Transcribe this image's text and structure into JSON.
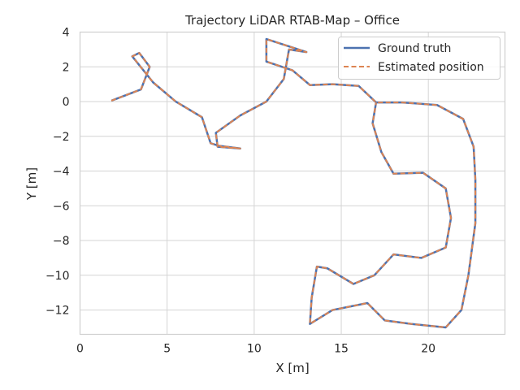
{
  "chart_data": {
    "type": "line",
    "title": "Trajectory LiDAR RTAB-Map – Office",
    "xlabel": "X [m]",
    "ylabel": "Y [m]",
    "xlim": [
      0,
      24.4
    ],
    "ylim": [
      -13.4,
      4
    ],
    "xticks": [
      0,
      5,
      10,
      15,
      20
    ],
    "yticks": [
      4,
      2,
      0,
      -2,
      -4,
      -6,
      -8,
      -10,
      -12
    ],
    "grid": true,
    "legend_position": "top-right",
    "series": [
      {
        "name": "Ground truth",
        "color": "#4C72B0",
        "style": "solid",
        "points": [
          [
            1.8,
            0.05
          ],
          [
            3.5,
            0.7
          ],
          [
            4.0,
            2.0
          ],
          [
            3.4,
            2.8
          ],
          [
            3.0,
            2.6
          ],
          [
            4.2,
            1.1
          ],
          [
            5.5,
            0.0
          ],
          [
            7.0,
            -0.9
          ],
          [
            7.5,
            -2.4
          ],
          [
            8.0,
            -2.55
          ],
          [
            9.2,
            -2.7
          ],
          [
            7.9,
            -2.6
          ],
          [
            7.8,
            -1.8
          ],
          [
            9.2,
            -0.8
          ],
          [
            10.7,
            0.0
          ],
          [
            11.7,
            1.3
          ],
          [
            12.0,
            3.0
          ],
          [
            13.0,
            2.85
          ],
          [
            10.7,
            3.6
          ],
          [
            10.7,
            2.3
          ],
          [
            12.2,
            1.8
          ],
          [
            13.2,
            0.95
          ],
          [
            14.5,
            1.0
          ],
          [
            16.0,
            0.9
          ],
          [
            17.0,
            -0.05
          ],
          [
            18.5,
            -0.05
          ],
          [
            20.5,
            -0.2
          ],
          [
            22.0,
            -1.0
          ],
          [
            22.6,
            -2.6
          ],
          [
            22.7,
            -4.5
          ],
          [
            22.7,
            -7.0
          ],
          [
            22.5,
            -8.5
          ],
          [
            22.3,
            -10.0
          ],
          [
            21.9,
            -12.0
          ],
          [
            21.0,
            -13.0
          ],
          [
            19.0,
            -12.8
          ],
          [
            17.5,
            -12.6
          ],
          [
            16.5,
            -11.6
          ],
          [
            14.5,
            -12.0
          ],
          [
            13.2,
            -12.8
          ],
          [
            13.3,
            -11.3
          ],
          [
            13.6,
            -9.5
          ],
          [
            14.2,
            -9.6
          ],
          [
            15.7,
            -10.5
          ],
          [
            16.9,
            -10.0
          ],
          [
            18.0,
            -8.8
          ],
          [
            19.6,
            -9.0
          ],
          [
            21.0,
            -8.4
          ],
          [
            21.3,
            -6.7
          ],
          [
            21.0,
            -5.0
          ],
          [
            19.7,
            -4.1
          ],
          [
            18.0,
            -4.15
          ],
          [
            17.3,
            -2.9
          ],
          [
            16.8,
            -1.25
          ],
          [
            17.0,
            -0.05
          ]
        ]
      },
      {
        "name": "Estimated position",
        "color": "#DD8452",
        "style": "dashed",
        "points": [
          [
            1.8,
            0.05
          ],
          [
            3.5,
            0.7
          ],
          [
            4.0,
            2.0
          ],
          [
            3.4,
            2.8
          ],
          [
            3.0,
            2.6
          ],
          [
            4.2,
            1.1
          ],
          [
            5.5,
            0.0
          ],
          [
            7.0,
            -0.9
          ],
          [
            7.5,
            -2.4
          ],
          [
            8.0,
            -2.55
          ],
          [
            9.2,
            -2.7
          ],
          [
            7.9,
            -2.6
          ],
          [
            7.8,
            -1.8
          ],
          [
            9.2,
            -0.8
          ],
          [
            10.7,
            0.0
          ],
          [
            11.7,
            1.3
          ],
          [
            12.0,
            3.0
          ],
          [
            13.0,
            2.85
          ],
          [
            10.7,
            3.6
          ],
          [
            10.7,
            2.3
          ],
          [
            12.2,
            1.8
          ],
          [
            13.2,
            0.95
          ],
          [
            14.5,
            1.0
          ],
          [
            16.0,
            0.9
          ],
          [
            17.0,
            -0.05
          ],
          [
            18.5,
            -0.05
          ],
          [
            20.5,
            -0.2
          ],
          [
            22.0,
            -1.0
          ],
          [
            22.6,
            -2.6
          ],
          [
            22.7,
            -4.5
          ],
          [
            22.7,
            -7.0
          ],
          [
            22.5,
            -8.5
          ],
          [
            22.3,
            -10.0
          ],
          [
            21.9,
            -12.0
          ],
          [
            21.0,
            -13.0
          ],
          [
            19.0,
            -12.8
          ],
          [
            17.5,
            -12.6
          ],
          [
            16.5,
            -11.6
          ],
          [
            14.5,
            -12.0
          ],
          [
            13.2,
            -12.8
          ],
          [
            13.3,
            -11.3
          ],
          [
            13.6,
            -9.5
          ],
          [
            14.2,
            -9.6
          ],
          [
            15.7,
            -10.5
          ],
          [
            16.9,
            -10.0
          ],
          [
            18.0,
            -8.8
          ],
          [
            19.6,
            -9.0
          ],
          [
            21.0,
            -8.4
          ],
          [
            21.3,
            -6.7
          ],
          [
            21.0,
            -5.0
          ],
          [
            19.7,
            -4.1
          ],
          [
            18.0,
            -4.15
          ],
          [
            17.3,
            -2.9
          ],
          [
            16.8,
            -1.25
          ],
          [
            17.0,
            -0.05
          ]
        ]
      }
    ]
  }
}
